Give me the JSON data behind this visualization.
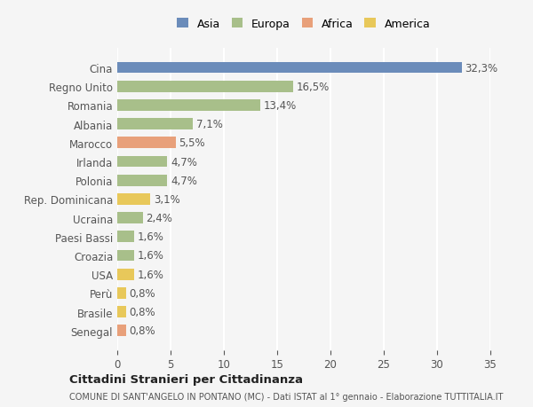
{
  "categories": [
    "Cina",
    "Regno Unito",
    "Romania",
    "Albania",
    "Marocco",
    "Irlanda",
    "Polonia",
    "Rep. Dominicana",
    "Ucraina",
    "Paesi Bassi",
    "Croazia",
    "USA",
    "Perù",
    "Brasile",
    "Senegal"
  ],
  "values": [
    32.3,
    16.5,
    13.4,
    7.1,
    5.5,
    4.7,
    4.7,
    3.1,
    2.4,
    1.6,
    1.6,
    1.6,
    0.8,
    0.8,
    0.8
  ],
  "labels": [
    "32,3%",
    "16,5%",
    "13,4%",
    "7,1%",
    "5,5%",
    "4,7%",
    "4,7%",
    "3,1%",
    "2,4%",
    "1,6%",
    "1,6%",
    "1,6%",
    "0,8%",
    "0,8%",
    "0,8%"
  ],
  "continents": [
    "Asia",
    "Europa",
    "Europa",
    "Europa",
    "Africa",
    "Europa",
    "Europa",
    "America",
    "Europa",
    "Europa",
    "Europa",
    "America",
    "America",
    "America",
    "Africa"
  ],
  "continent_colors": {
    "Asia": "#6b8cba",
    "Europa": "#a8bf8a",
    "Africa": "#e8a07a",
    "America": "#e8c85a"
  },
  "legend_order": [
    "Asia",
    "Europa",
    "Africa",
    "America"
  ],
  "title": "Cittadini Stranieri per Cittadinanza",
  "subtitle": "COMUNE DI SANT'ANGELO IN PONTANO (MC) - Dati ISTAT al 1° gennaio - Elaborazione TUTTITALIA.IT",
  "xlim": [
    0,
    35
  ],
  "xticks": [
    0,
    5,
    10,
    15,
    20,
    25,
    30,
    35
  ],
  "background_color": "#f5f5f5",
  "grid_color": "#ffffff",
  "label_fontsize": 8.5,
  "tick_fontsize": 8.5
}
